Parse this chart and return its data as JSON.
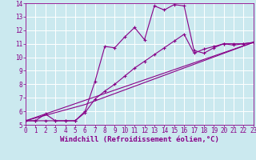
{
  "background_color": "#cbe9ef",
  "grid_color": "#ffffff",
  "line_color": "#880088",
  "xlabel": "Windchill (Refroidissement éolien,°C)",
  "xlabel_fontsize": 6.5,
  "tick_fontsize": 5.5,
  "xlim": [
    0,
    23
  ],
  "ylim": [
    5,
    14
  ],
  "xticks": [
    0,
    1,
    2,
    3,
    4,
    5,
    6,
    7,
    8,
    9,
    10,
    11,
    12,
    13,
    14,
    15,
    16,
    17,
    18,
    19,
    20,
    21,
    22,
    23
  ],
  "yticks": [
    5,
    6,
    7,
    8,
    9,
    10,
    11,
    12,
    13,
    14
  ],
  "line1_x": [
    0,
    1,
    2,
    3,
    4,
    5,
    6,
    7,
    8,
    9,
    10,
    11,
    12,
    13,
    14,
    15,
    16,
    17,
    18,
    19,
    20,
    21,
    22,
    23
  ],
  "line1_y": [
    5.3,
    5.3,
    5.8,
    5.3,
    5.3,
    5.3,
    6.0,
    8.2,
    10.8,
    10.7,
    11.5,
    12.2,
    11.3,
    13.8,
    13.5,
    13.9,
    13.8,
    10.5,
    10.3,
    10.7,
    11.0,
    10.9,
    11.0,
    11.1
  ],
  "line2_x": [
    0,
    1,
    2,
    3,
    4,
    5,
    6,
    7,
    8,
    9,
    10,
    11,
    12,
    13,
    14,
    15,
    16,
    17,
    18,
    19,
    20,
    21,
    22,
    23
  ],
  "line2_y": [
    5.3,
    5.3,
    5.3,
    5.3,
    5.3,
    5.3,
    5.9,
    6.9,
    7.5,
    8.0,
    8.6,
    9.2,
    9.7,
    10.2,
    10.7,
    11.2,
    11.7,
    10.3,
    10.6,
    10.8,
    11.0,
    11.0,
    11.0,
    11.1
  ],
  "line3_x": [
    0,
    23
  ],
  "line3_y": [
    5.3,
    11.1
  ],
  "line4_x": [
    0,
    6,
    23
  ],
  "line4_y": [
    5.3,
    6.5,
    11.1
  ]
}
